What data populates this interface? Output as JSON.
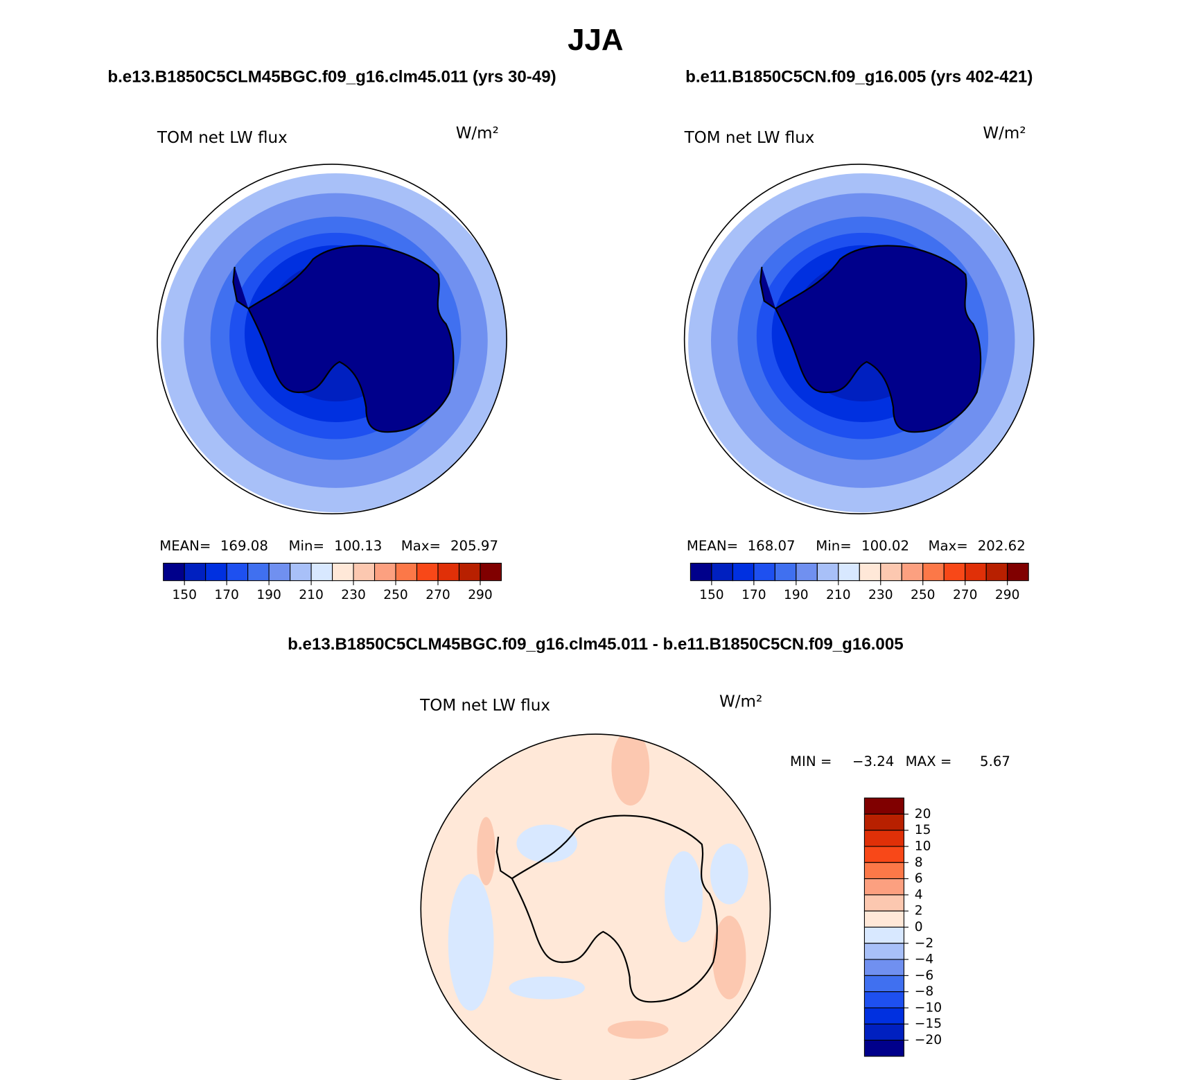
{
  "title": "JJA",
  "panels": [
    {
      "subtitle": "b.e13.B1850C5CLM45BGC.f09_g16.clm45.011 (yrs 30-49)",
      "field": "TOM net LW flux",
      "units": "W/m²",
      "stats": [
        {
          "label": "MEAN=",
          "value": 169.08
        },
        {
          "label": "Min=",
          "value": 100.13
        },
        {
          "label": "Max=",
          "value": 205.97
        }
      ],
      "colorbar": {
        "colors": [
          "#00008b",
          "#0020c0",
          "#0030e0",
          "#1e50f0",
          "#4070f0",
          "#7090f0",
          "#a8c0f8",
          "#d8e8ff",
          "#ffe8d8",
          "#fcc8b0",
          "#fca080",
          "#fc7848",
          "#f84818",
          "#e03008",
          "#b82000",
          "#800000"
        ],
        "lim": [
          140,
          300
        ],
        "ticks": [
          150,
          170,
          190,
          210,
          230,
          250,
          270,
          290
        ]
      }
    },
    {
      "subtitle": "b.e11.B1850C5CN.f09_g16.005 (yrs 402-421)",
      "field": "TOM net LW flux",
      "units": "W/m²",
      "stats": [
        {
          "label": "MEAN=",
          "value": 168.07
        },
        {
          "label": "Min=",
          "value": 100.02
        },
        {
          "label": "Max=",
          "value": 202.62
        }
      ],
      "colorbar": {
        "colors": [
          "#00008b",
          "#0020c0",
          "#0030e0",
          "#1e50f0",
          "#4070f0",
          "#7090f0",
          "#a8c0f8",
          "#d8e8ff",
          "#ffe8d8",
          "#fcc8b0",
          "#fca080",
          "#fc7848",
          "#f84818",
          "#e03008",
          "#b82000",
          "#800000"
        ],
        "lim": [
          140,
          300
        ],
        "ticks": [
          150,
          170,
          190,
          210,
          230,
          250,
          270,
          290
        ]
      }
    }
  ],
  "difference": {
    "subtitle": "b.e13.B1850C5CLM45BGC.f09_g16.clm45.011 - b.e11.B1850C5CN.f09_g16.005",
    "field": "TOM net LW flux",
    "units": "W/m²",
    "min_label": "MIN =",
    "min": {
      "value": -3.24,
      "label": "−3.24"
    },
    "max_label": "MAX =",
    "max": 5.67,
    "colorbar": {
      "colors": [
        "#800000",
        "#b82000",
        "#e03008",
        "#f84818",
        "#fc7848",
        "#fca080",
        "#fcc8b0",
        "#ffe8d8",
        "#d8e8ff",
        "#a8c0f8",
        "#7090f0",
        "#4070f0",
        "#1e50f0",
        "#0030e0",
        "#0020c0",
        "#00008b"
      ],
      "ticks": [
        20,
        15,
        10,
        8,
        6,
        4,
        2,
        0,
        {
          "value": -2,
          "label": "−2"
        },
        {
          "value": -4,
          "label": "−4"
        },
        {
          "value": -6,
          "label": "−6"
        },
        {
          "value": -8,
          "label": "−8"
        },
        {
          "value": -10,
          "label": "−10"
        },
        {
          "value": -15,
          "label": "−15"
        },
        {
          "value": -20,
          "label": "−20"
        }
      ]
    }
  }
}
